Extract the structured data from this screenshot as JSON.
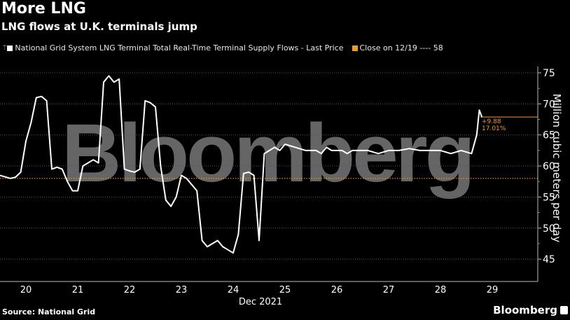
{
  "header": {
    "title": "More LNG",
    "subtitle": "LNG flows at U.K. terminals jump"
  },
  "legend": {
    "series_label": "National Grid System LNG Terminal Total Real-Time Terminal Supply Flows - Last Price",
    "series_color": "#ffffff",
    "reference_label": "Close on 12/19 ---- 58",
    "reference_color": "#f39c12"
  },
  "annotation": {
    "change": "+9.88",
    "change_pct": "17.01%",
    "color": "#f39c12"
  },
  "axis": {
    "y_label": "Million cubic meters per day",
    "y_ticks": [
      "75",
      "70",
      "65",
      "60",
      "55",
      "50",
      "45"
    ],
    "x_ticks": [
      "20",
      "21",
      "22",
      "23",
      "24",
      "25",
      "26",
      "27",
      "28",
      "29"
    ],
    "x_label": "Dec 2021"
  },
  "footer": {
    "source": "Source: National Grid",
    "brand": "Bloomberg"
  },
  "watermark": "Bloomberg",
  "chart_data": {
    "type": "line",
    "title": "More LNG",
    "subtitle": "LNG flows at U.K. terminals jump",
    "xlabel": "Dec 2021",
    "ylabel": "Million cubic meters per day",
    "ylim": [
      43,
      77
    ],
    "yticks": [
      45,
      50,
      55,
      60,
      65,
      70,
      75
    ],
    "xticks": [
      "20",
      "21",
      "22",
      "23",
      "24",
      "25",
      "26",
      "27",
      "28",
      "29"
    ],
    "grid": true,
    "legend_position": "top",
    "series": [
      {
        "name": "National Grid System LNG Terminal Total Real-Time Terminal Supply Flows - Last Price",
        "color": "#ffffff",
        "x": [
          19.5,
          19.7,
          19.8,
          19.9,
          20.0,
          20.1,
          20.2,
          20.3,
          20.4,
          20.5,
          20.6,
          20.7,
          20.8,
          20.9,
          21.0,
          21.1,
          21.2,
          21.3,
          21.4,
          21.5,
          21.6,
          21.7,
          21.8,
          21.9,
          22.0,
          22.1,
          22.2,
          22.3,
          22.4,
          22.5,
          22.6,
          22.7,
          22.8,
          22.9,
          23.0,
          23.1,
          23.2,
          23.3,
          23.4,
          23.5,
          23.6,
          23.7,
          23.8,
          23.9,
          24.0,
          24.1,
          24.2,
          24.3,
          24.4,
          24.5,
          24.6,
          24.7,
          24.8,
          24.9,
          25.0,
          25.2,
          25.4,
          25.6,
          25.7,
          25.8,
          25.9,
          26.0,
          26.1,
          26.2,
          26.3,
          26.4,
          26.5,
          26.6,
          26.8,
          27.0,
          27.2,
          27.4,
          27.6,
          27.8,
          28.0,
          28.2,
          28.4,
          28.6,
          28.7,
          28.75,
          28.8
        ],
        "values": [
          58.5,
          58.0,
          58.2,
          59.0,
          64.0,
          67.0,
          71.0,
          71.2,
          70.5,
          59.5,
          59.8,
          59.5,
          57.5,
          56.0,
          56.0,
          60.0,
          60.5,
          61.0,
          60.5,
          73.5,
          74.5,
          73.5,
          74.0,
          59.5,
          59.2,
          59.0,
          59.5,
          70.5,
          70.2,
          69.5,
          60.0,
          54.5,
          53.5,
          55.0,
          58.5,
          58.0,
          57.0,
          56.0,
          48.0,
          47.0,
          47.5,
          48.0,
          47.0,
          46.5,
          46.0,
          49.0,
          58.8,
          59.0,
          58.5,
          48.0,
          62.0,
          62.5,
          63.0,
          62.5,
          63.5,
          63.0,
          62.5,
          62.5,
          62.0,
          63.0,
          62.5,
          62.5,
          62.5,
          62.0,
          62.5,
          62.5,
          62.5,
          62.5,
          62.0,
          62.5,
          62.5,
          62.8,
          62.5,
          62.5,
          62.5,
          62.0,
          62.5,
          62.0,
          65.0,
          69.0,
          67.88
        ]
      },
      {
        "name": "Close on 12/19",
        "color": "#f39c12",
        "style": "dotted",
        "value": 58
      }
    ],
    "annotations": [
      {
        "text": "+9.88",
        "value": 67.88
      },
      {
        "text": "17.01%"
      }
    ]
  }
}
